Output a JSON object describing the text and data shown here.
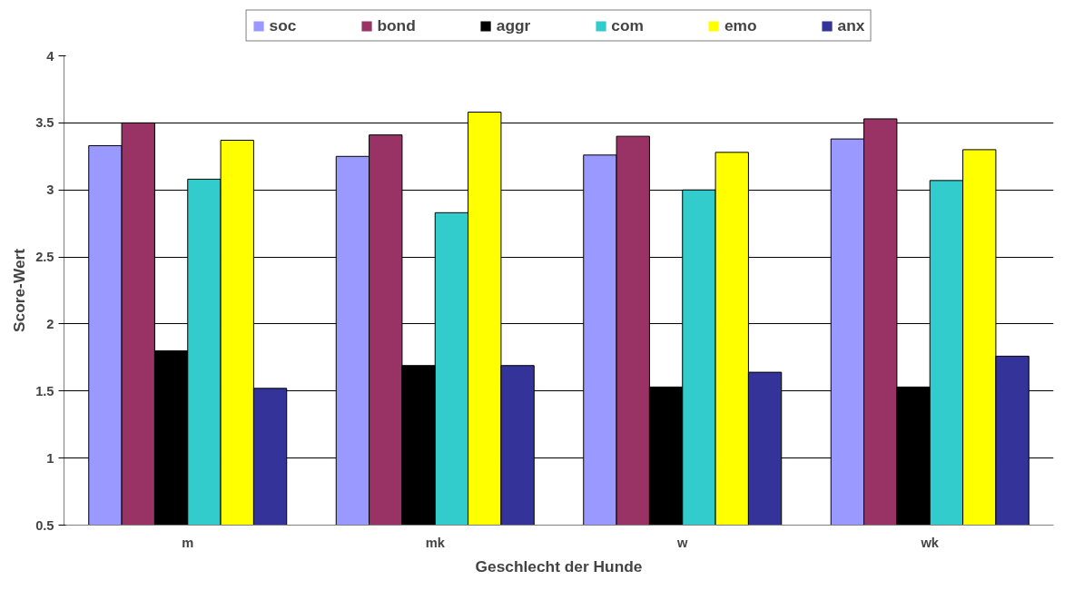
{
  "chart_data": {
    "type": "bar",
    "xlabel": "Geschlecht der Hunde",
    "ylabel": "Score-Wert",
    "categories": [
      "m",
      "mk",
      "w",
      "wk"
    ],
    "series": [
      {
        "name": "soc",
        "color": "#9999ff",
        "values": [
          3.33,
          3.25,
          3.26,
          3.38
        ]
      },
      {
        "name": "bond",
        "color": "#993366",
        "values": [
          3.5,
          3.41,
          3.4,
          3.53
        ]
      },
      {
        "name": "aggr",
        "color": "#000000",
        "values": [
          1.8,
          1.69,
          1.53,
          1.53
        ]
      },
      {
        "name": "com",
        "color": "#33cccc",
        "values": [
          3.08,
          2.83,
          3.0,
          3.07
        ]
      },
      {
        "name": "emo",
        "color": "#ffff00",
        "values": [
          3.37,
          3.58,
          3.28,
          3.3
        ]
      },
      {
        "name": "anx",
        "color": "#333399",
        "values": [
          1.52,
          1.69,
          1.64,
          1.76
        ]
      }
    ],
    "ylim": [
      0.5,
      4
    ],
    "yticks": [
      0.5,
      1,
      1.5,
      2,
      2.5,
      3,
      3.5,
      4
    ],
    "grid": "y",
    "legend": "top"
  }
}
